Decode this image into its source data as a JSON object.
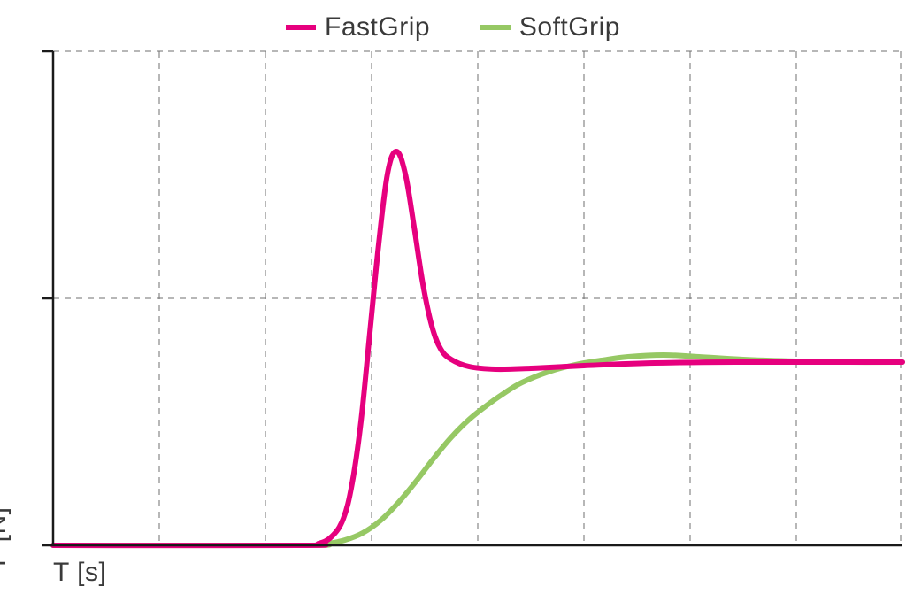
{
  "chart": {
    "type": "line",
    "background_color": "#ffffff",
    "axis_color": "#1a1a1a",
    "axis_width": 2.5,
    "grid_color": "#6f6f6f",
    "grid_dash": "7 6",
    "grid_width": 1,
    "label_color": "#3a3a3a",
    "label_fontsize": 30,
    "ylabel": "F [N]",
    "xlabel": "T [s]",
    "xlim": [
      0,
      960
    ],
    "ylim": [
      0,
      558
    ],
    "x_gridlines": [
      0,
      120,
      240,
      360,
      480,
      600,
      720,
      840,
      958
    ],
    "y_gridlines": [
      0,
      279,
      558
    ],
    "y_tick_len_out": 12,
    "legend": {
      "items": [
        {
          "label": "FastGrip",
          "color": "#e6007e"
        },
        {
          "label": "SoftGrip",
          "color": "#96c864"
        }
      ]
    },
    "series": [
      {
        "name": "SoftGrip",
        "color": "#96c864",
        "width": 6,
        "points": [
          [
            0,
            0
          ],
          [
            280,
            0
          ],
          [
            310,
            2
          ],
          [
            330,
            6
          ],
          [
            350,
            14
          ],
          [
            370,
            28
          ],
          [
            390,
            48
          ],
          [
            410,
            72
          ],
          [
            430,
            98
          ],
          [
            450,
            122
          ],
          [
            470,
            142
          ],
          [
            490,
            158
          ],
          [
            510,
            172
          ],
          [
            530,
            184
          ],
          [
            560,
            196
          ],
          [
            590,
            204
          ],
          [
            620,
            209
          ],
          [
            650,
            213
          ],
          [
            690,
            215
          ],
          [
            730,
            213
          ],
          [
            780,
            210
          ],
          [
            840,
            208
          ],
          [
            900,
            207
          ],
          [
            960,
            207
          ]
        ]
      },
      {
        "name": "FastGrip",
        "color": "#e6007e",
        "width": 6,
        "points": [
          [
            0,
            0
          ],
          [
            280,
            0
          ],
          [
            300,
            2
          ],
          [
            315,
            10
          ],
          [
            328,
            30
          ],
          [
            338,
            70
          ],
          [
            348,
            140
          ],
          [
            358,
            240
          ],
          [
            368,
            340
          ],
          [
            378,
            420
          ],
          [
            388,
            445
          ],
          [
            398,
            420
          ],
          [
            408,
            360
          ],
          [
            418,
            295
          ],
          [
            428,
            248
          ],
          [
            438,
            222
          ],
          [
            450,
            210
          ],
          [
            470,
            202
          ],
          [
            500,
            199
          ],
          [
            540,
            200
          ],
          [
            600,
            203
          ],
          [
            680,
            206
          ],
          [
            780,
            207
          ],
          [
            880,
            207
          ],
          [
            960,
            207
          ]
        ]
      }
    ]
  }
}
